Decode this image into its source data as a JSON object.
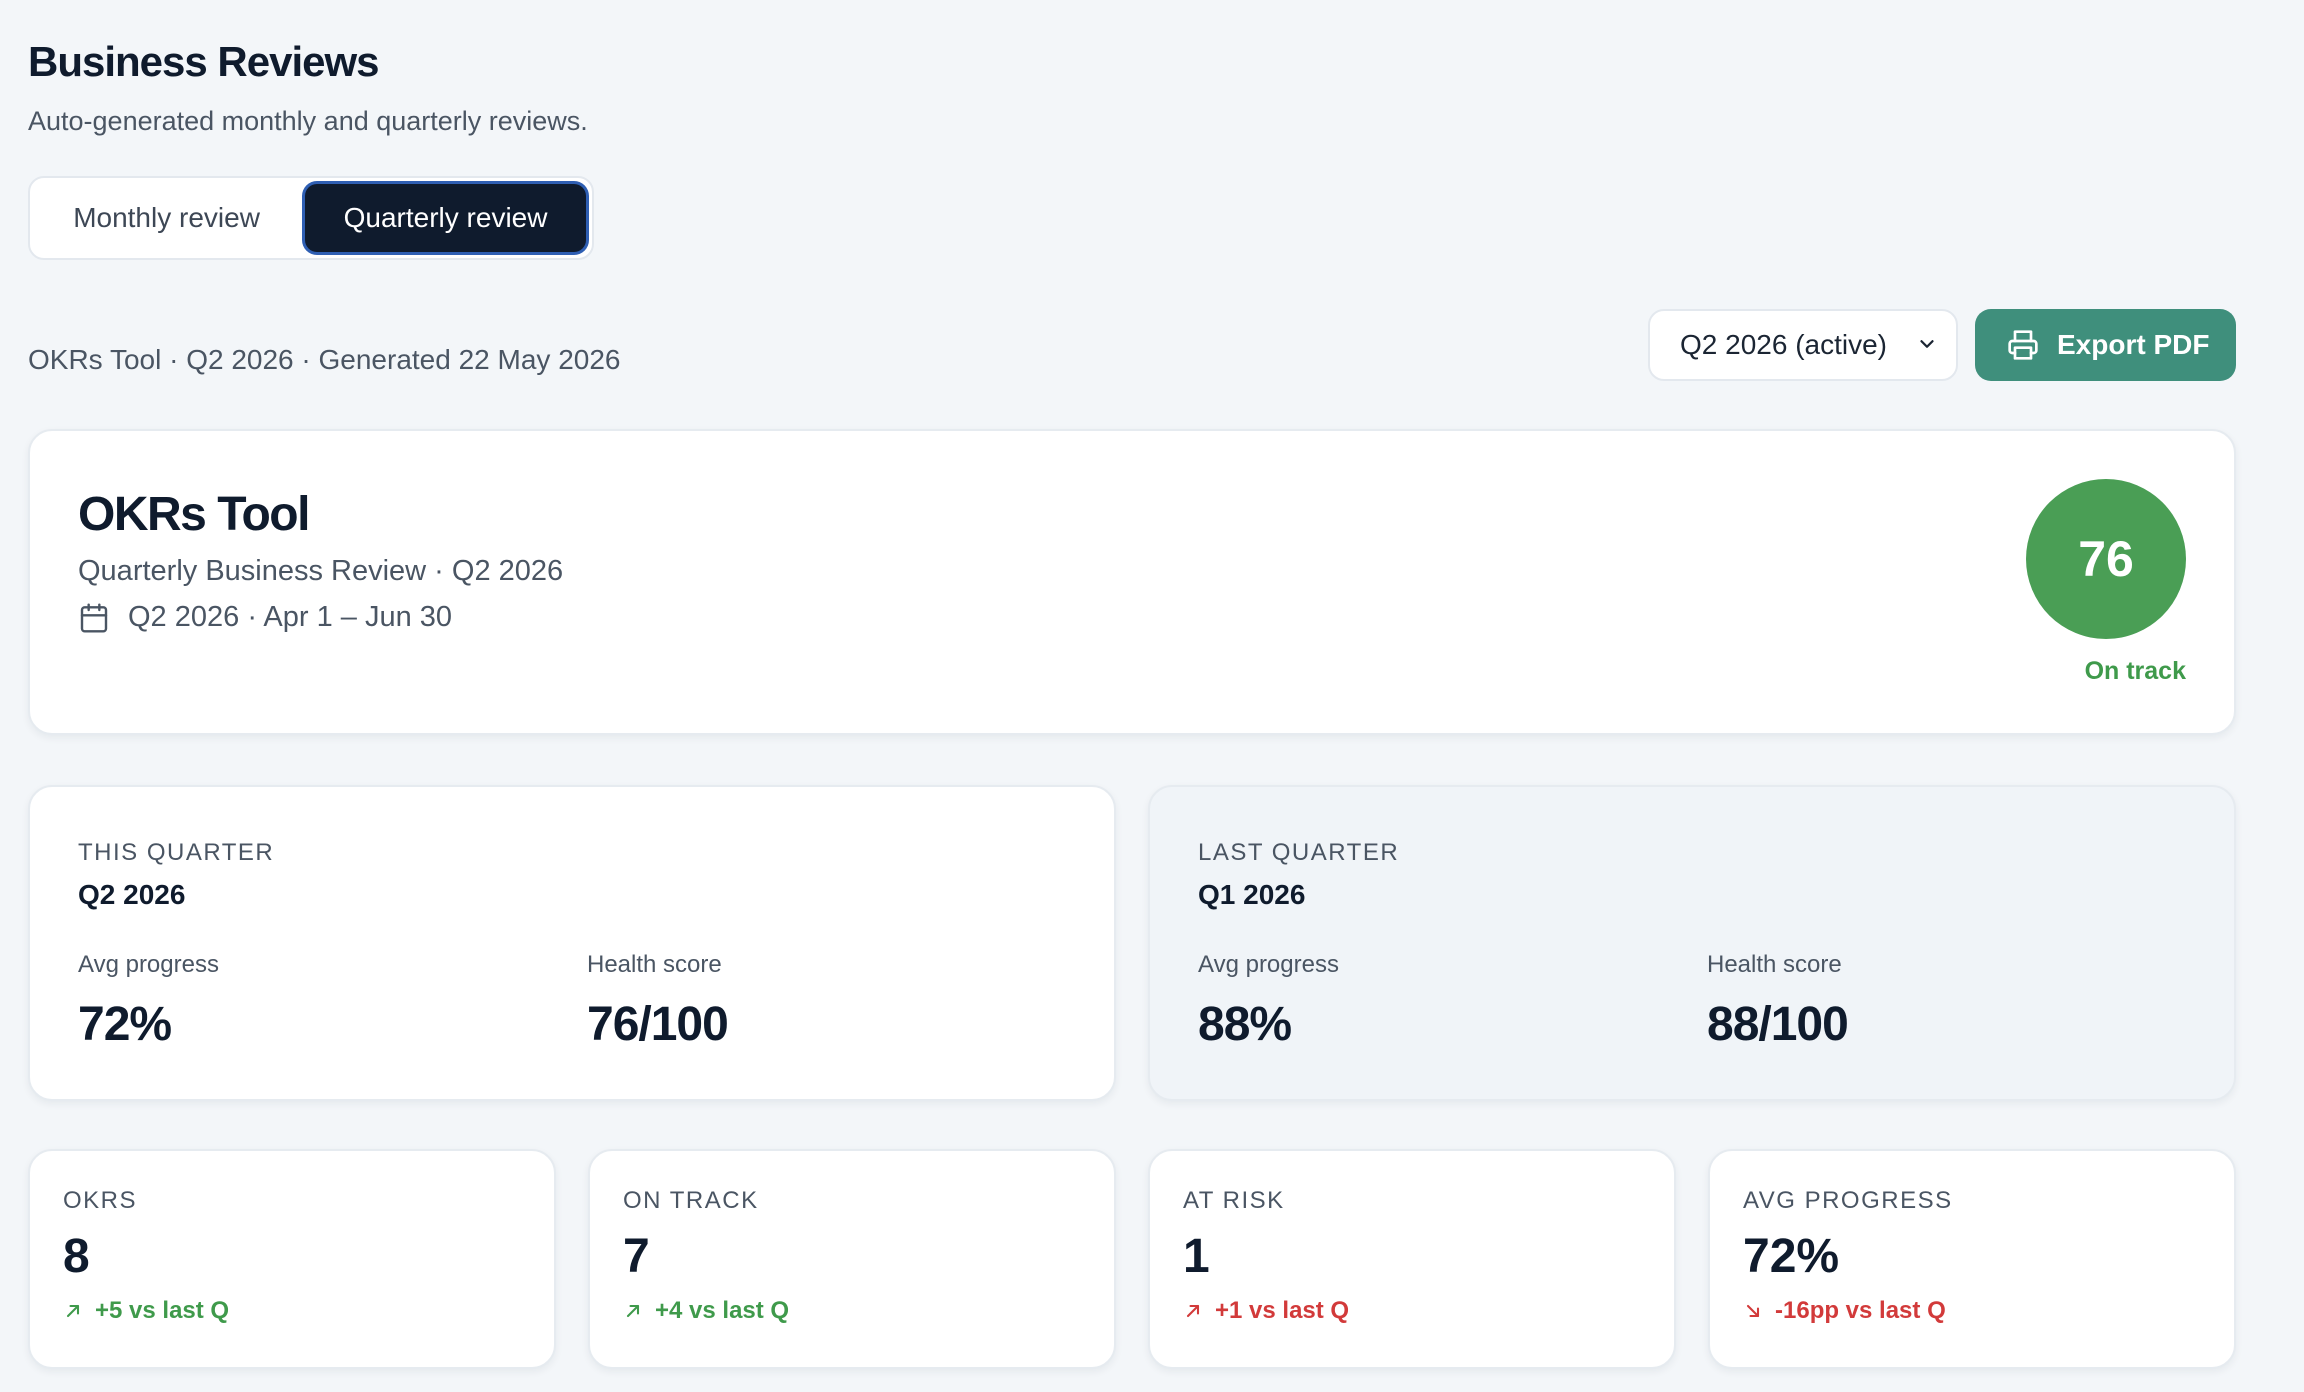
{
  "header": {
    "title": "Business Reviews",
    "subtitle": "Auto-generated monthly and quarterly reviews."
  },
  "tabs": {
    "monthly": "Monthly review",
    "quarterly": "Quarterly review",
    "active": "quarterly"
  },
  "toolbar": {
    "meta": "OKRs Tool · Q2 2026 · Generated 22 May 2026",
    "period_select": "Q2 2026 (active)",
    "export_label": "Export PDF"
  },
  "hero": {
    "title": "OKRs Tool",
    "subtitle": "Quarterly Business Review · Q2 2026",
    "date_range": "Q2 2026 · Apr 1 – Jun 30",
    "score": "76",
    "score_status": "On track"
  },
  "this_quarter": {
    "label": "THIS QUARTER",
    "name": "Q2 2026",
    "avg_progress_label": "Avg progress",
    "avg_progress": "72%",
    "health_label": "Health score",
    "health": "76/100"
  },
  "last_quarter": {
    "label": "LAST QUARTER",
    "name": "Q1 2026",
    "avg_progress_label": "Avg progress",
    "avg_progress": "88%",
    "health_label": "Health score",
    "health": "88/100"
  },
  "stats": [
    {
      "label": "OKRS",
      "value": "8",
      "delta": "+5 vs last Q",
      "trend": "up",
      "tone": "good"
    },
    {
      "label": "ON TRACK",
      "value": "7",
      "delta": "+4 vs last Q",
      "trend": "up",
      "tone": "good"
    },
    {
      "label": "AT RISK",
      "value": "1",
      "delta": "+1 vs last Q",
      "trend": "up",
      "tone": "bad"
    },
    {
      "label": "AVG PROGRESS",
      "value": "72%",
      "delta": "-16pp vs last Q",
      "trend": "down",
      "tone": "bad"
    }
  ],
  "colors": {
    "accent": "#3f8f7c",
    "score_green": "#4a9e55",
    "positive": "#3f9a4b",
    "negative": "#d23a3a",
    "dark": "#0f1b2d"
  }
}
